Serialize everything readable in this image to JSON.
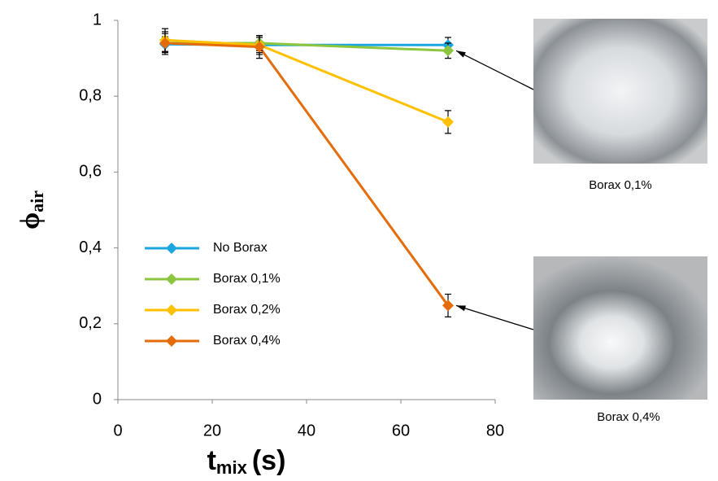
{
  "chart_data": {
    "type": "line",
    "xlabel": "t",
    "xlabel_subscript": "mix",
    "xlabel_unit": "(s)",
    "ylabel": "ϕ",
    "ylabel_subscript": "air",
    "x": [
      10,
      30,
      70
    ],
    "series": [
      {
        "name": "No Borax",
        "color": "#1ca6e0",
        "values": [
          0.937,
          0.935,
          0.935
        ],
        "errors": [
          0.02,
          0.02,
          0.02
        ]
      },
      {
        "name": "Borax 0,1%",
        "color": "#8cc63e",
        "values": [
          0.94,
          0.94,
          0.92
        ],
        "errors": [
          0.025,
          0.02,
          0.02
        ]
      },
      {
        "name": "Borax 0,2%",
        "color": "#ffc000",
        "values": [
          0.948,
          0.935,
          0.732
        ],
        "errors": [
          0.03,
          0.025,
          0.03
        ]
      },
      {
        "name": "Borax 0,4%",
        "color": "#e46c0a",
        "values": [
          0.94,
          0.93,
          0.248
        ],
        "errors": [
          0.03,
          0.03,
          0.03
        ]
      }
    ],
    "xlim": [
      0,
      80
    ],
    "xticks": [
      0,
      20,
      40,
      60,
      80
    ],
    "ylim": [
      0,
      1
    ],
    "yticks": [
      0,
      {
        "value": 0.2,
        "label": "0,2"
      },
      {
        "value": 0.4,
        "label": "0,4"
      },
      {
        "value": 0.6,
        "label": "0,6"
      },
      {
        "value": 0.8,
        "label": "0,8"
      },
      1
    ],
    "grid": false,
    "legend": "lower left",
    "annotations": [
      {
        "text": "Borax 0,1%"
      },
      {
        "text": "Borax 0,4%"
      }
    ]
  }
}
